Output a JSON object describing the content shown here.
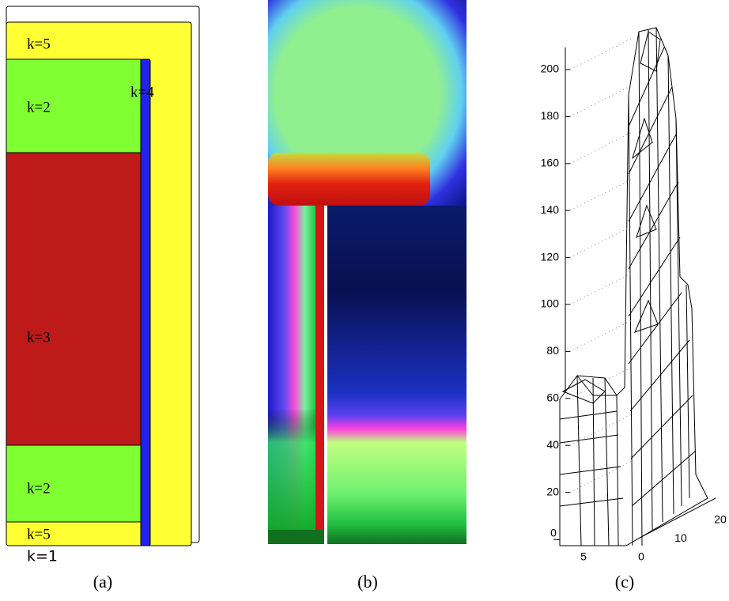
{
  "panel_a": {
    "regions": [
      "k=5",
      "k=2",
      "k=4",
      "k=3",
      "k=2",
      "k=5",
      "k=1"
    ],
    "caption": "(a)"
  },
  "panel_b": {
    "caption": "(b)"
  },
  "panel_c": {
    "z_ticks": [
      20,
      40,
      60,
      80,
      100,
      120,
      140,
      160,
      180,
      200
    ],
    "x_ticks": [
      0,
      5
    ],
    "y_ticks": [
      0,
      10,
      20
    ],
    "caption": "(c)"
  }
}
